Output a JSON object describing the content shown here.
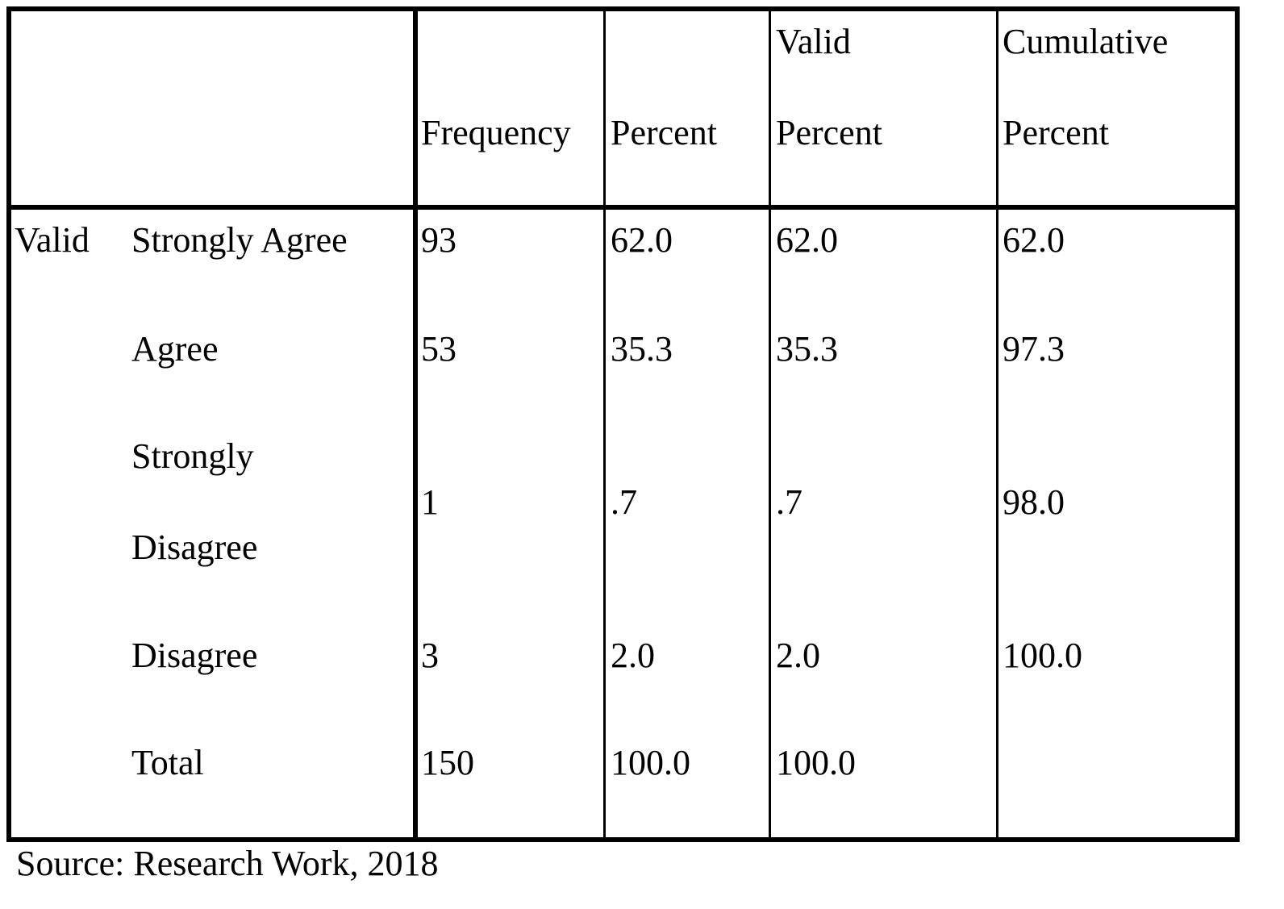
{
  "table": {
    "columns": [
      "Frequency",
      "Percent",
      "Valid Percent",
      "Cumulative Percent"
    ],
    "group": "Valid",
    "rows": [
      [
        "Strongly Agree",
        "93",
        "62.0",
        "62.0",
        "62.0"
      ],
      [
        "Agree",
        "53",
        "35.3",
        "35.3",
        "97.3"
      ],
      [
        "Strongly Disagree",
        "1",
        ".7",
        ".7",
        "98.0"
      ],
      [
        "Disagree",
        "3",
        "2.0",
        "2.0",
        "100.0"
      ],
      [
        "Total",
        "150",
        "100.0",
        "100.0"
      ]
    ]
  },
  "source": "Source: Research Work, 2018"
}
